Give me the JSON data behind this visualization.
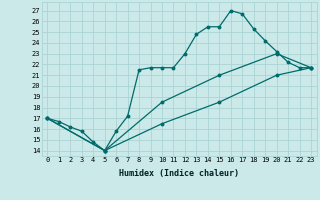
{
  "xlabel": "Humidex (Indice chaleur)",
  "bg_color": "#cce9e9",
  "grid_color": "#aad4d4",
  "line_color": "#006b6b",
  "xlim": [
    -0.5,
    23.5
  ],
  "ylim": [
    13.5,
    27.8
  ],
  "xticks": [
    0,
    1,
    2,
    3,
    4,
    5,
    6,
    7,
    8,
    9,
    10,
    11,
    12,
    13,
    14,
    15,
    16,
    17,
    18,
    19,
    20,
    21,
    22,
    23
  ],
  "yticks": [
    14,
    15,
    16,
    17,
    18,
    19,
    20,
    21,
    22,
    23,
    24,
    25,
    26,
    27
  ],
  "curve1_x": [
    0,
    1,
    2,
    3,
    4,
    5,
    6,
    7,
    8,
    9,
    10,
    11,
    12,
    13,
    14,
    15,
    16,
    17,
    18,
    19,
    20,
    21,
    22,
    23
  ],
  "curve1_y": [
    17.0,
    16.7,
    16.2,
    15.8,
    14.8,
    14.0,
    15.8,
    17.2,
    21.5,
    21.7,
    21.7,
    21.7,
    23.0,
    24.8,
    25.5,
    25.5,
    27.0,
    26.7,
    25.3,
    24.2,
    23.2,
    22.2,
    21.7,
    21.7
  ],
  "curve2_x": [
    0,
    5,
    10,
    15,
    20,
    23
  ],
  "curve2_y": [
    17.0,
    14.0,
    18.5,
    21.0,
    23.0,
    21.7
  ],
  "curve3_x": [
    0,
    5,
    10,
    15,
    20,
    23
  ],
  "curve3_y": [
    17.0,
    14.0,
    16.5,
    18.5,
    21.0,
    21.7
  ],
  "xlabel_fontsize": 6.0,
  "tick_fontsize": 5.0,
  "linewidth": 0.9,
  "markersize": 1.8
}
